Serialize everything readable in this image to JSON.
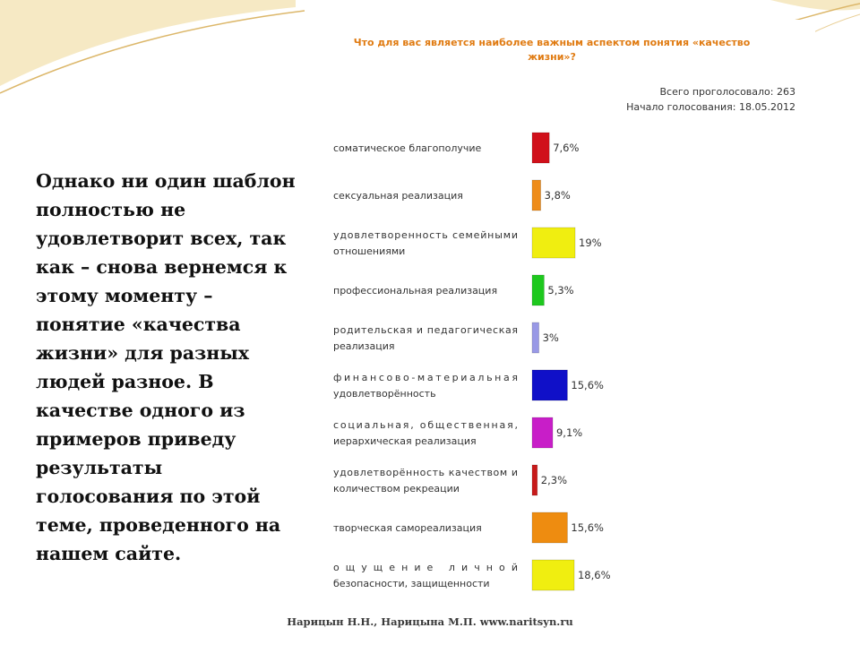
{
  "slide": {
    "text": "Однако ни один шаблон полностью не удовлетворит всех, так как – снова вернемся к этому моменту – понятие «качества жизни» для разных людей разное. В качестве одного из примеров приведу результаты голосования по этой теме, проведенного на нашем сайте.",
    "footer": "Нарицын Н.Н., Нарицына М.П. www.naritsyn.ru"
  },
  "poll": {
    "total_votes": "Всего проголосовало: 263",
    "start_date": "Начало голосования: 18.05.2012"
  },
  "chart_data": {
    "type": "bar",
    "orientation": "horizontal",
    "title": "Что для вас является наиболее важным аспектом понятия «качество жизни»?",
    "categories": [
      "соматическое благополучие",
      "сексуальная реализация",
      "удовлетворенность семейными отношениями",
      "профессиональная реализация",
      "родительская и педагогическая реализация",
      "финансово-материальная удовлетворённость",
      "социальная, общественная, иерархическая реализация",
      "удовлетворённость качеством и количеством рекреации",
      "творческая самореализация",
      "ощущение личной безопасности, защищенности"
    ],
    "category_lines": [
      [
        "соматическое благополучие"
      ],
      [
        "сексуальная реализация"
      ],
      [
        "удовлетворенность семейными",
        "отношениями"
      ],
      [
        "профессиональная реализация"
      ],
      [
        "родительская и педагогическая",
        "реализация"
      ],
      [
        "финансово-материальная",
        "удовлетворённость"
      ],
      [
        "социальная, общественная,",
        "иерархическая реализация"
      ],
      [
        "удовлетворённость качеством и",
        "количеством рекреации"
      ],
      [
        "творческая самореализация"
      ],
      [
        "ощущение личной",
        "безопасности, защищенности"
      ]
    ],
    "values": [
      7.6,
      3.8,
      19,
      5.3,
      3,
      15.6,
      9.1,
      2.3,
      15.6,
      18.6
    ],
    "value_labels": [
      "7,6%",
      "3,8%",
      "19%",
      "5,3%",
      "3%",
      "15,6%",
      "9,1%",
      "2,3%",
      "15,6%",
      "18,6%"
    ],
    "colors": [
      "#d0101a",
      "#ee8c1a",
      "#f0ee10",
      "#1ec81e",
      "#9999e6",
      "#1010c8",
      "#c81ec8",
      "#c81a1a",
      "#ee8c10",
      "#f0ee10"
    ],
    "xlim": [
      0,
      19
    ],
    "legend": "none",
    "grid": false
  }
}
